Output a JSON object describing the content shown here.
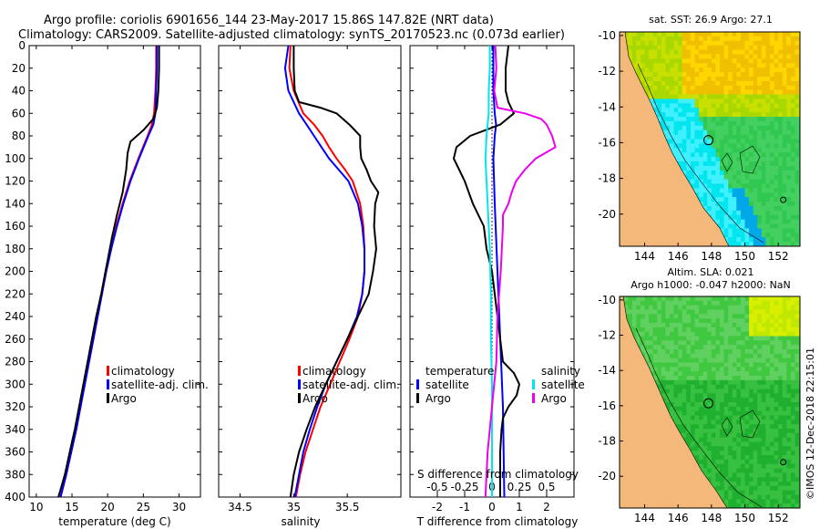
{
  "title": {
    "line1": "Argo profile: coriolis 6901656_144 23-May-2017 15.86S 147.82E (NRT data)",
    "line2": "Climatology: CARS2009. Satellite-adjusted climatology: synTS_20170523.nc (0.073d earlier)"
  },
  "colors": {
    "red": "#ff0000",
    "blue": "#0000ff",
    "black": "#000000",
    "cyan": "#00e5ee",
    "magenta": "#ee00ee",
    "land": "#f4b97a"
  },
  "chart_data": [
    {
      "type": "line",
      "id": "temperature",
      "xlabel": "temperature (deg C)",
      "ylabel": "",
      "xlim": [
        9,
        33
      ],
      "ylim": [
        400,
        0
      ],
      "xticks": [
        10,
        15,
        20,
        25,
        30
      ],
      "yticks": [
        0,
        20,
        40,
        60,
        80,
        100,
        120,
        140,
        160,
        180,
        200,
        220,
        240,
        260,
        280,
        300,
        320,
        340,
        360,
        380,
        400
      ],
      "legend": [
        "climatology",
        "satellite-adj. clim.",
        "Argo"
      ],
      "series": [
        {
          "name": "climatology",
          "color": "red",
          "depth": [
            0,
            20,
            40,
            60,
            70,
            80,
            100,
            120,
            140,
            160,
            180,
            200,
            220,
            240,
            260,
            280,
            300,
            320,
            340,
            360,
            380,
            400
          ],
          "values": [
            26.8,
            26.8,
            26.7,
            26.5,
            26.2,
            25.6,
            24.3,
            23.1,
            22.1,
            21.2,
            20.5,
            19.8,
            19.2,
            18.6,
            18.0,
            17.4,
            16.8,
            16.2,
            15.6,
            14.9,
            14.2,
            13.4
          ]
        },
        {
          "name": "satellite-adj. clim.",
          "color": "blue",
          "depth": [
            0,
            20,
            40,
            60,
            70,
            80,
            100,
            120,
            140,
            160,
            180,
            200,
            220,
            240,
            260,
            280,
            300,
            320,
            340,
            360,
            380,
            400
          ],
          "values": [
            26.9,
            26.9,
            26.8,
            26.7,
            26.4,
            25.7,
            24.4,
            23.2,
            22.2,
            21.3,
            20.5,
            19.8,
            19.2,
            18.6,
            18.0,
            17.4,
            16.8,
            16.2,
            15.6,
            14.9,
            14.2,
            13.4
          ]
        },
        {
          "name": "Argo",
          "color": "black",
          "depth": [
            0,
            20,
            40,
            55,
            65,
            75,
            85,
            95,
            110,
            130,
            150,
            170,
            190,
            200,
            220,
            240,
            260,
            280,
            300,
            320,
            340,
            360,
            380,
            400
          ],
          "values": [
            27.2,
            27.2,
            27.1,
            26.9,
            26.4,
            25.0,
            23.2,
            22.8,
            22.6,
            22.1,
            21.3,
            20.6,
            20.0,
            19.7,
            19.1,
            18.4,
            17.8,
            17.2,
            16.6,
            16.0,
            15.4,
            14.7,
            14.0,
            13.1
          ]
        }
      ]
    },
    {
      "type": "line",
      "id": "salinity",
      "xlabel": "salinity",
      "ylabel": "",
      "xlim": [
        34.3,
        36.0
      ],
      "ylim": [
        400,
        0
      ],
      "xticks": [
        34.5,
        35,
        35.5
      ],
      "xtick_labels": [
        "34.5",
        "35",
        "35.5"
      ],
      "yticks": [
        0,
        20,
        40,
        60,
        80,
        100,
        120,
        140,
        160,
        180,
        200,
        220,
        240,
        260,
        280,
        300,
        320,
        340,
        360,
        380,
        400
      ],
      "legend": [
        "climatology",
        "satellite-adj. clim.",
        "Argo"
      ],
      "series": [
        {
          "name": "climatology",
          "color": "red",
          "depth": [
            0,
            20,
            40,
            60,
            70,
            80,
            90,
            100,
            110,
            120,
            140,
            160,
            180,
            200,
            220,
            240,
            260,
            280,
            300,
            320,
            340,
            360,
            380,
            400
          ],
          "values": [
            34.97,
            34.96,
            35.0,
            35.09,
            35.19,
            35.27,
            35.33,
            35.4,
            35.48,
            35.55,
            35.62,
            35.65,
            35.66,
            35.66,
            35.64,
            35.6,
            35.52,
            35.43,
            35.34,
            35.25,
            35.18,
            35.11,
            35.06,
            35.02
          ]
        },
        {
          "name": "satellite-adj. clim.",
          "color": "blue",
          "depth": [
            0,
            20,
            40,
            60,
            70,
            80,
            90,
            100,
            110,
            120,
            140,
            160,
            180,
            200,
            220,
            240,
            260,
            280,
            300,
            320,
            340,
            360,
            380,
            400
          ],
          "values": [
            34.95,
            34.92,
            34.95,
            35.05,
            35.12,
            35.19,
            35.26,
            35.33,
            35.42,
            35.51,
            35.6,
            35.64,
            35.66,
            35.66,
            35.64,
            35.59,
            35.5,
            35.4,
            35.3,
            35.22,
            35.15,
            35.09,
            35.05,
            35.01
          ]
        },
        {
          "name": "Argo",
          "color": "black",
          "depth": [
            0,
            20,
            40,
            50,
            55,
            60,
            70,
            80,
            90,
            100,
            110,
            120,
            130,
            140,
            160,
            180,
            200,
            220,
            240,
            260,
            280,
            300,
            320,
            340,
            360,
            380,
            400
          ],
          "values": [
            35.0,
            35.0,
            35.01,
            35.05,
            35.25,
            35.4,
            35.52,
            35.62,
            35.62,
            35.63,
            35.68,
            35.72,
            35.79,
            35.76,
            35.75,
            35.77,
            35.74,
            35.7,
            35.6,
            35.5,
            35.4,
            35.3,
            35.2,
            35.12,
            35.05,
            35.0,
            34.97
          ]
        }
      ]
    },
    {
      "type": "line",
      "id": "difference",
      "xlabel": "T difference from climatology",
      "xlabel2": "S difference from climatology",
      "xlim": [
        -3,
        3
      ],
      "ylim": [
        400,
        0
      ],
      "xticks": [
        -2,
        -1,
        0,
        1,
        2
      ],
      "xtick_labels": [
        "-2",
        "-1",
        "0",
        "1",
        "2"
      ],
      "s_ticks": [
        -0.5,
        -0.25,
        0,
        0.25,
        0.5
      ],
      "s_tick_labels": [
        "-0.5",
        "-0.25",
        "0",
        "0.25",
        "0.5"
      ],
      "yticks": [
        0,
        20,
        40,
        60,
        80,
        100,
        120,
        140,
        160,
        180,
        200,
        220,
        240,
        260,
        280,
        300,
        320,
        340,
        360,
        380,
        400
      ],
      "legend_temperature_title": "temperature",
      "legend_salinity_title": "salinity",
      "legend_temperature": [
        "satellite",
        "Argo"
      ],
      "legend_salinity": [
        "satellite",
        "Argo"
      ],
      "series": [
        {
          "name": "T satellite",
          "color": "blue",
          "depth": [
            0,
            40,
            60,
            70,
            80,
            100,
            140,
            200,
            260,
            320,
            400
          ],
          "values": [
            0.05,
            0.05,
            0.1,
            0.15,
            0.1,
            0.05,
            0.1,
            0.2,
            0.3,
            0.4,
            0.45
          ]
        },
        {
          "name": "T Argo",
          "color": "black",
          "depth": [
            0,
            20,
            40,
            50,
            60,
            70,
            80,
            90,
            100,
            110,
            120,
            140,
            160,
            180,
            200,
            220,
            240,
            260,
            280,
            290,
            300,
            310,
            320,
            330,
            340,
            360,
            380,
            400
          ],
          "values": [
            0.6,
            0.5,
            0.5,
            0.6,
            0.8,
            0.3,
            -0.8,
            -1.3,
            -1.4,
            -1.2,
            -1.0,
            -0.7,
            -0.3,
            -0.2,
            0.0,
            0.1,
            0.2,
            0.3,
            0.4,
            0.8,
            1.0,
            0.9,
            0.6,
            0.4,
            0.35,
            0.3,
            0.3,
            0.3
          ]
        },
        {
          "name": "S satellite",
          "color": "cyan",
          "depth": [
            0,
            20,
            40,
            60,
            80,
            100,
            140,
            180,
            220,
            260,
            300,
            340,
            380,
            400
          ],
          "values": [
            -0.02,
            -0.02,
            -0.03,
            -0.03,
            -0.05,
            -0.06,
            -0.04,
            -0.02,
            -0.01,
            -0.01,
            0.0,
            0.0,
            0.0,
            0.0
          ]
        },
        {
          "name": "S Argo",
          "color": "magenta",
          "depth": [
            0,
            20,
            40,
            55,
            60,
            65,
            70,
            80,
            90,
            100,
            110,
            120,
            130,
            140,
            150,
            160,
            200,
            240,
            280,
            300,
            320,
            340,
            360,
            380,
            400
          ],
          "values": [
            0.03,
            0.04,
            0.02,
            0.05,
            0.3,
            0.45,
            0.5,
            0.55,
            0.58,
            0.4,
            0.3,
            0.22,
            0.18,
            0.15,
            0.1,
            0.1,
            0.08,
            0.05,
            0.04,
            0.02,
            0.0,
            -0.02,
            -0.04,
            -0.05,
            -0.06
          ]
        }
      ]
    },
    {
      "type": "heatmap",
      "id": "sst-map",
      "title": "sat. SST: 26.9 Argo: 27.1",
      "xticks": [
        144,
        146,
        148,
        150,
        152
      ],
      "yticks": [
        -10,
        -12,
        -14,
        -16,
        -18,
        -20
      ],
      "xlim": [
        142.5,
        153.3
      ],
      "ylim": [
        -21.8,
        -9.8
      ],
      "argo_position": [
        147.82,
        -15.86
      ]
    },
    {
      "type": "heatmap",
      "id": "sla-map",
      "title": "Altim. SLA: 0.021",
      "subtitle": "Argo h1000: -0.047 h2000: NaN",
      "xticks": [
        144,
        146,
        148,
        150,
        152
      ],
      "yticks": [
        -10,
        -12,
        -14,
        -16,
        -18,
        -20
      ],
      "xlim": [
        142.5,
        153.3
      ],
      "ylim": [
        -21.8,
        -9.8
      ],
      "argo_position": [
        147.82,
        -15.86
      ]
    }
  ],
  "credit": "©IMOS 12-Dec-2018 22:15:01"
}
